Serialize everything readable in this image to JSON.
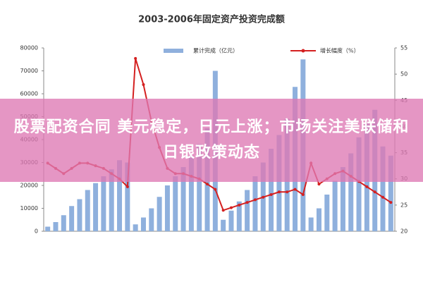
{
  "chart_data": {
    "type": "bar",
    "title": "2003-2006年固定资产投资完成额",
    "categories": [
      null,
      null,
      null,
      null,
      null,
      null,
      null,
      null,
      null,
      null,
      null,
      null,
      null,
      null,
      null,
      null,
      null,
      null,
      null,
      null,
      null,
      null,
      null,
      null,
      null,
      null,
      null,
      null,
      null,
      null,
      null,
      null,
      null,
      null,
      null,
      null,
      null,
      null,
      null,
      null,
      null,
      null,
      null,
      null
    ],
    "series": [
      {
        "name": "累计完成（亿元）",
        "color": "#8fb0dd",
        "type": "bar",
        "values": [
          2000,
          4000,
          7000,
          11000,
          14000,
          18000,
          21000,
          24000,
          27000,
          31000,
          30000,
          3000,
          6000,
          10000,
          15000,
          20000,
          24000,
          28000,
          33000,
          38000,
          45000,
          70000,
          5000,
          9000,
          13000,
          18000,
          24000,
          30000,
          36000,
          42000,
          49000,
          63000,
          75000,
          6000,
          10000,
          16000,
          22000,
          28000,
          34000,
          41000,
          47000,
          53000,
          37000,
          33000
        ]
      },
      {
        "name": "增长幅度（%）",
        "color": "#d42020",
        "type": "line",
        "axis": "y2",
        "values": [
          33,
          32,
          31,
          32,
          33,
          33,
          32.5,
          32,
          31,
          30,
          28.5,
          53,
          48,
          41,
          36,
          32,
          31,
          31,
          30.5,
          30,
          29,
          28,
          24,
          24.5,
          25,
          25.5,
          26,
          26.5,
          27,
          27.5,
          27.5,
          28,
          27,
          33,
          29,
          30,
          31,
          31.5,
          30.5,
          29.5,
          28.5,
          27.5,
          26.5,
          25.5
        ]
      }
    ],
    "ylim": [
      0,
      80000
    ],
    "yticks": [
      0,
      10000,
      20000,
      30000,
      40000,
      50000,
      60000,
      70000,
      80000
    ],
    "y2lim": [
      20,
      55
    ],
    "y2ticks": [
      20,
      25,
      30,
      35,
      40,
      45,
      50,
      55
    ],
    "grid": false
  },
  "headline": "股票配资合同 美元稳定，日元上涨；市场关注美联储和日银政策动态"
}
